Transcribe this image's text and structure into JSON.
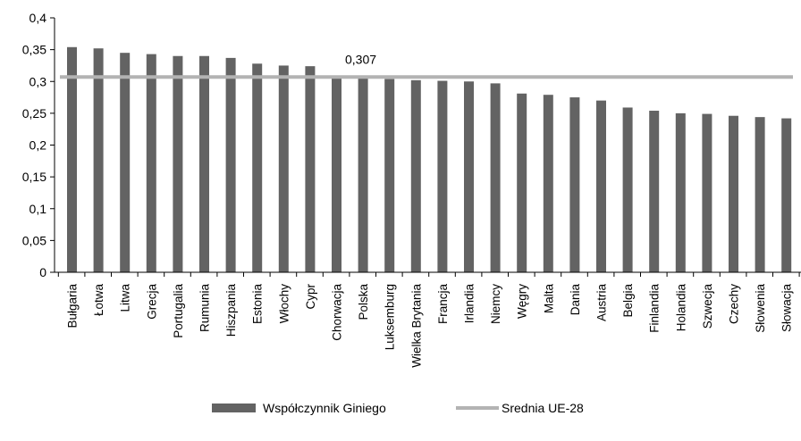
{
  "chart_data": {
    "type": "bar",
    "categories": [
      "Bułgaria",
      "Łotwa",
      "Litwa",
      "Grecja",
      "Portugalia",
      "Rumunia",
      "Hiszpania",
      "Estonia",
      "Włochy",
      "Cypr",
      "Chorwacja",
      "Polska",
      "Luksemburg",
      "Wielka Brytania",
      "Francja",
      "Irlandia",
      "Niemcy",
      "Węgry",
      "Malta",
      "Dania",
      "Austria",
      "Belgia",
      "Finlandia",
      "Holandia",
      "Szwecja",
      "Czechy",
      "Słowenia",
      "Słowacja"
    ],
    "series": [
      {
        "name": "Współczynnik Giniego",
        "type": "bar",
        "color": "#636363",
        "values": [
          0.354,
          0.352,
          0.345,
          0.343,
          0.34,
          0.34,
          0.337,
          0.328,
          0.325,
          0.324,
          0.306,
          0.305,
          0.304,
          0.302,
          0.301,
          0.3,
          0.297,
          0.281,
          0.279,
          0.275,
          0.27,
          0.259,
          0.254,
          0.25,
          0.249,
          0.246,
          0.244,
          0.242
        ]
      },
      {
        "name": "Srednia UE-28",
        "type": "line",
        "color": "#b3b3b3",
        "value": 0.307
      }
    ],
    "annotation": "0,307",
    "ylim": [
      0,
      0.4
    ],
    "yticks": [
      "0",
      "0,05",
      "0,1",
      "0,15",
      "0,2",
      "0,25",
      "0,3",
      "0,35",
      "0,4"
    ],
    "ytick_values": [
      0,
      0.05,
      0.1,
      0.15,
      0.2,
      0.25,
      0.3,
      0.35,
      0.4
    ],
    "grid": false,
    "legend_position": "bottom"
  }
}
